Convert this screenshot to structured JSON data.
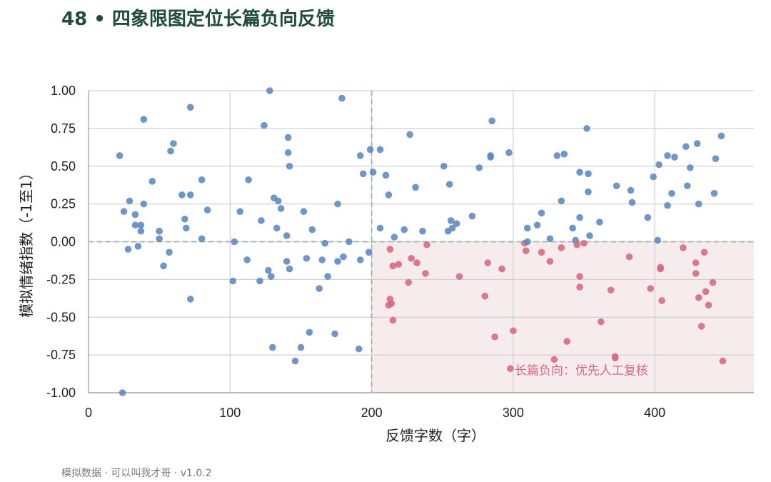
{
  "title": "48 • 四象限图定位长篇负向反馈",
  "footer": "模拟数据 · 可以叫我才哥 · v1.0.2",
  "colors": {
    "positive": "#5b87c2",
    "negative": "#d6687f",
    "shade": "#f7eced",
    "title": "#1f4d3a"
  },
  "chart_data": {
    "type": "scatter",
    "xlabel": "反馈字数（字）",
    "ylabel": "模拟情绪指数（-1至1）",
    "xlim": [
      0,
      470
    ],
    "ylim": [
      -1,
      1
    ],
    "xticks": [
      0,
      100,
      200,
      300,
      400
    ],
    "yticks": [
      -1.0,
      -0.75,
      -0.5,
      -0.25,
      0.0,
      0.25,
      0.5,
      0.75,
      1.0
    ],
    "ytick_labels": [
      "-1.00",
      "-0.75",
      "-0.50",
      "-0.25",
      "0.00",
      "0.25",
      "0.50",
      "0.75",
      "1.00"
    ],
    "grid": true,
    "thresholds": {
      "x": 200,
      "y": 0
    },
    "highlight_quadrant": "x>200, y<0",
    "annotation": {
      "text": "长篇负向：优先人工复核",
      "x": 300,
      "y": -0.85
    },
    "points": [
      [
        22,
        0.57
      ],
      [
        25,
        0.2
      ],
      [
        28,
        -0.05
      ],
      [
        29,
        0.27
      ],
      [
        33,
        0.18
      ],
      [
        33,
        0.11
      ],
      [
        35,
        -0.03
      ],
      [
        37,
        0.07
      ],
      [
        37,
        0.11
      ],
      [
        39,
        0.25
      ],
      [
        39,
        0.81
      ],
      [
        45,
        0.4
      ],
      [
        50,
        0.07
      ],
      [
        50,
        0.02
      ],
      [
        53,
        -0.16
      ],
      [
        57,
        -0.07
      ],
      [
        58,
        0.6
      ],
      [
        60,
        0.65
      ],
      [
        66,
        0.31
      ],
      [
        68,
        0.15
      ],
      [
        69,
        0.09
      ],
      [
        72,
        0.31
      ],
      [
        72,
        -0.38
      ],
      [
        72,
        0.89
      ],
      [
        80,
        0.41
      ],
      [
        80,
        0.02
      ],
      [
        84,
        0.21
      ],
      [
        24,
        -1.0
      ],
      [
        102,
        -0.26
      ],
      [
        103,
        0.0
      ],
      [
        107,
        0.2
      ],
      [
        112,
        -0.12
      ],
      [
        113,
        0.41
      ],
      [
        121,
        -0.26
      ],
      [
        122,
        0.14
      ],
      [
        124,
        0.77
      ],
      [
        127,
        -0.19
      ],
      [
        128,
        1.0
      ],
      [
        129,
        -0.23
      ],
      [
        130,
        -0.7
      ],
      [
        131,
        0.29
      ],
      [
        133,
        0.09
      ],
      [
        134,
        0.27
      ],
      [
        136,
        0.22
      ],
      [
        140,
        0.04
      ],
      [
        140,
        -0.13
      ],
      [
        141,
        0.59
      ],
      [
        141,
        0.69
      ],
      [
        142,
        0.5
      ],
      [
        142,
        -0.18
      ],
      [
        146,
        -0.79
      ],
      [
        150,
        -0.7
      ],
      [
        152,
        0.2
      ],
      [
        154,
        -0.11
      ],
      [
        156,
        -0.6
      ],
      [
        158,
        0.08
      ],
      [
        163,
        -0.31
      ],
      [
        165,
        -0.12
      ],
      [
        167,
        -0.01
      ],
      [
        169,
        -0.23
      ],
      [
        174,
        -0.61
      ],
      [
        176,
        0.25
      ],
      [
        176,
        -0.13
      ],
      [
        179,
        0.95
      ],
      [
        180,
        -0.1
      ],
      [
        184,
        0.0
      ],
      [
        191,
        -0.71
      ],
      [
        192,
        0.57
      ],
      [
        192,
        -0.12
      ],
      [
        194,
        0.45
      ],
      [
        199,
        0.61
      ],
      [
        198,
        -0.07
      ],
      [
        201,
        0.46
      ],
      [
        206,
        0.09
      ],
      [
        206,
        0.61
      ],
      [
        210,
        0.44
      ],
      [
        212,
        0.31
      ],
      [
        216,
        0.03
      ],
      [
        223,
        0.08
      ],
      [
        227,
        0.71
      ],
      [
        231,
        0.36
      ],
      [
        236,
        0.07
      ],
      [
        251,
        0.5
      ],
      [
        254,
        0.07
      ],
      [
        255,
        0.38
      ],
      [
        256,
        0.14
      ],
      [
        257,
        0.09
      ],
      [
        260,
        0.12
      ],
      [
        271,
        0.17
      ],
      [
        276,
        0.49
      ],
      [
        284,
        0.56
      ],
      [
        284,
        0.57
      ],
      [
        285,
        0.8
      ],
      [
        297,
        0.59
      ],
      [
        310,
        0.09
      ],
      [
        317,
        0.11
      ],
      [
        320,
        0.19
      ],
      [
        326,
        0.02
      ],
      [
        331,
        0.57
      ],
      [
        334,
        0.27
      ],
      [
        336,
        0.58
      ],
      [
        342,
        0.09
      ],
      [
        344,
        0.01
      ],
      [
        347,
        0.16
      ],
      [
        347,
        0.46
      ],
      [
        352,
        0.75
      ],
      [
        353,
        0.33
      ],
      [
        353,
        0.45
      ],
      [
        354,
        0.04
      ],
      [
        361,
        0.13
      ],
      [
        373,
        0.37
      ],
      [
        383,
        0.34
      ],
      [
        384,
        0.26
      ],
      [
        395,
        0.16
      ],
      [
        399,
        0.43
      ],
      [
        402,
        0.01
      ],
      [
        403,
        0.51
      ],
      [
        409,
        0.24
      ],
      [
        409,
        0.57
      ],
      [
        412,
        0.32
      ],
      [
        414,
        0.56
      ],
      [
        422,
        0.63
      ],
      [
        423,
        0.37
      ],
      [
        425,
        0.49
      ],
      [
        430,
        0.65
      ],
      [
        431,
        0.25
      ],
      [
        442,
        0.32
      ],
      [
        443,
        0.55
      ],
      [
        447,
        0.7
      ],
      [
        212,
        -0.42
      ],
      [
        213,
        -0.38
      ],
      [
        213,
        -0.05
      ],
      [
        214,
        -0.41
      ],
      [
        215,
        -0.16
      ],
      [
        215,
        -0.52
      ],
      [
        219,
        -0.15
      ],
      [
        226,
        -0.27
      ],
      [
        228,
        -0.11
      ],
      [
        232,
        -0.14
      ],
      [
        238,
        -0.21
      ],
      [
        239,
        -0.02
      ],
      [
        262,
        -0.23
      ],
      [
        280,
        -0.36
      ],
      [
        282,
        -0.14
      ],
      [
        287,
        -0.63
      ],
      [
        292,
        -0.18
      ],
      [
        298,
        -0.84
      ],
      [
        300,
        -0.59
      ],
      [
        308,
        -0.01
      ],
      [
        309,
        -0.06
      ],
      [
        310,
        0.0
      ],
      [
        320,
        -0.07
      ],
      [
        326,
        -0.13
      ],
      [
        329,
        -0.78
      ],
      [
        334,
        -0.04
      ],
      [
        338,
        -0.66
      ],
      [
        345,
        -0.02
      ],
      [
        347,
        -0.3
      ],
      [
        347,
        -0.23
      ],
      [
        350,
        -0.01
      ],
      [
        362,
        -0.53
      ],
      [
        369,
        -0.32
      ],
      [
        372,
        -0.77
      ],
      [
        372,
        -0.76
      ],
      [
        382,
        -0.1
      ],
      [
        397,
        -0.31
      ],
      [
        404,
        -0.17
      ],
      [
        404,
        -0.18
      ],
      [
        405,
        -0.39
      ],
      [
        420,
        -0.04
      ],
      [
        429,
        -0.14
      ],
      [
        429,
        -0.21
      ],
      [
        431,
        -0.37
      ],
      [
        433,
        -0.56
      ],
      [
        435,
        -0.07
      ],
      [
        436,
        -0.33
      ],
      [
        438,
        -0.42
      ],
      [
        441,
        -0.27
      ],
      [
        448,
        -0.79
      ]
    ]
  }
}
